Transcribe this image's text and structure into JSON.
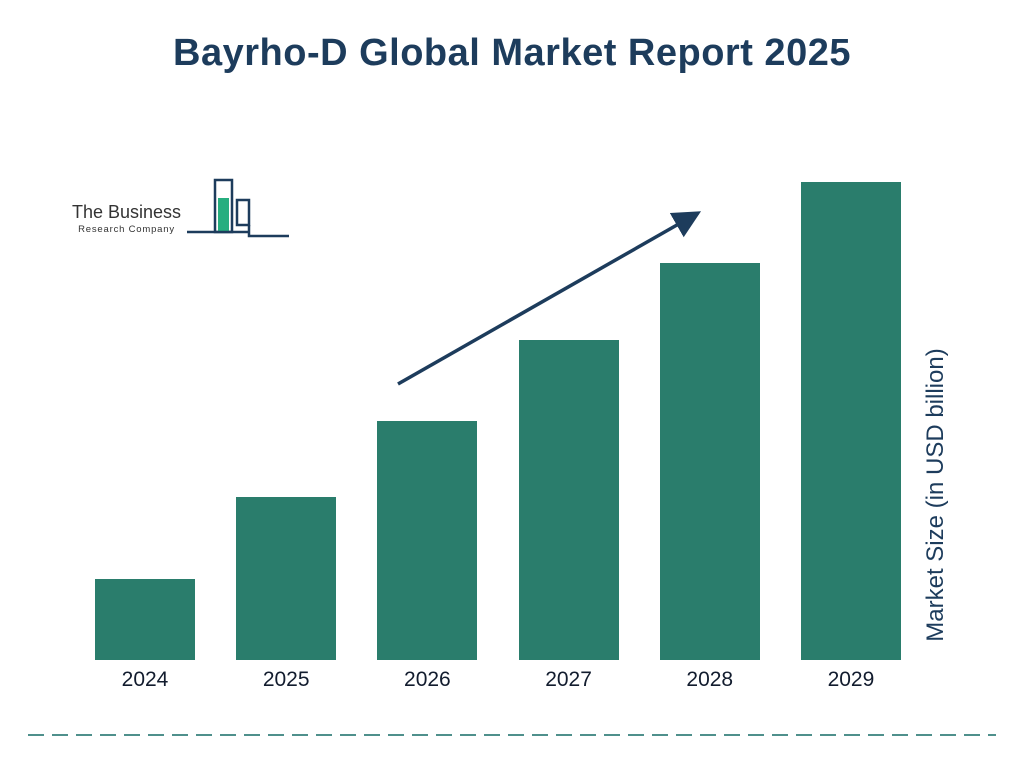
{
  "title": "Bayrho-D Global Market Report 2025",
  "logo": {
    "line1": "The Business",
    "line2": "Research Company"
  },
  "colors": {
    "bar": "#2a7d6c",
    "navy": "#1d3c5c",
    "logo_green": "#27ae7f",
    "dashed_line": "#4f908c"
  },
  "chart_data": {
    "type": "bar",
    "title": "Bayrho-D Global Market Report 2025",
    "categories": [
      "2024",
      "2025",
      "2026",
      "2027",
      "2028",
      "2029"
    ],
    "values": [
      17,
      34,
      50,
      67,
      83,
      100
    ],
    "xlabel": "",
    "ylabel": "Market Size (in USD billion)",
    "ylim": [
      0,
      100
    ],
    "grid": false,
    "legend": false,
    "annotations": [
      "upward trend arrow"
    ]
  }
}
